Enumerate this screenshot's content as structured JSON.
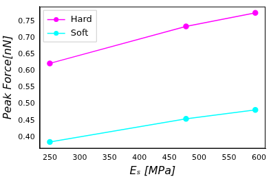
{
  "chart_data": {
    "type": "line",
    "x_label": "Eₛ [MPa]",
    "y_label": "Peak Force[nN]",
    "x": [
      250,
      478,
      594
    ],
    "series": [
      {
        "name": "Hard",
        "color": "#ff00ff",
        "marker": "circle",
        "line_style": "solid",
        "values": [
          0.623,
          0.735,
          0.776
        ]
      },
      {
        "name": "Soft",
        "color": "#00ffff",
        "marker": "circle",
        "line_style": "solid",
        "values": [
          0.385,
          0.455,
          0.482
        ]
      }
    ],
    "xlim": [
      233,
      611
    ],
    "xticks": [
      250,
      300,
      350,
      400,
      450,
      500,
      550,
      600
    ],
    "ylim": [
      0.365,
      0.795
    ],
    "yticks": [
      {
        "value": 0.4,
        "label": "0.40"
      },
      {
        "value": 0.45,
        "label": "0.45"
      },
      {
        "value": 0.5,
        "label": "0.50"
      },
      {
        "value": 0.55,
        "label": "0.55"
      },
      {
        "value": 0.6,
        "label": "0.60"
      },
      {
        "value": 0.65,
        "label": "0.65"
      },
      {
        "value": 0.7,
        "label": "0.70"
      },
      {
        "value": 0.75,
        "label": "0.75"
      }
    ],
    "grid": false,
    "legend": "upper left"
  }
}
